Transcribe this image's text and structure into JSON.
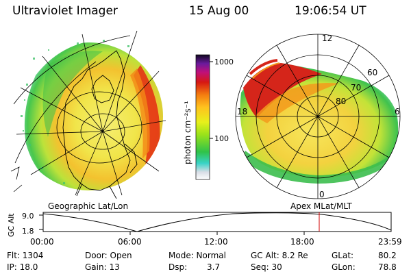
{
  "header": {
    "instrument": "Ultraviolet Imager",
    "date": "15 Aug 00",
    "time": "19:06:54 UT"
  },
  "colorbar": {
    "unit_label": "photon cm⁻²s⁻¹",
    "ticks": [
      "1000",
      "100"
    ],
    "scale": "log"
  },
  "left_panel": {
    "caption": "Geographic Lat/Lon"
  },
  "right_panel": {
    "caption": "Apex  MLat/MLT",
    "mlt_labels": [
      "12",
      "18",
      "6",
      "0"
    ],
    "mlat_labels": [
      "60",
      "70",
      "80"
    ]
  },
  "altitude_plot": {
    "axis_label": "GC Alt",
    "y_ticks": [
      "9.0",
      "1.8"
    ],
    "x_ticks": [
      "00:00",
      "06:00",
      "12:00",
      "18:00",
      "23:59"
    ],
    "marker_color": "#d00000"
  },
  "info": {
    "flt": "Flt: 1304",
    "ip": "IP: 18.0",
    "door": "Door: Open",
    "gain": "Gain: 13",
    "mode": "Mode: Normal",
    "dsp_label": "Dsp:",
    "dsp_value": "3.7",
    "gc_alt": "GC Alt: 8.2 Re",
    "seq": "Seq: 30",
    "glat_label": "GLat:",
    "glat_value": "80.2",
    "glon_label": "GLon:",
    "glon_value": "78.8"
  }
}
